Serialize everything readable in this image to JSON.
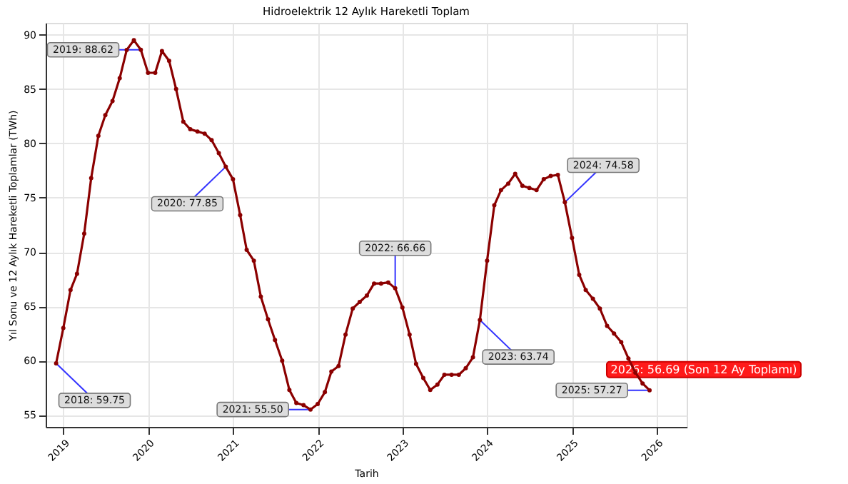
{
  "chart_data": {
    "type": "line",
    "title": "Hidroelektrik 12 Aylık Hareketli Toplam",
    "xlabel": "Tarih",
    "ylabel": "Yıl Sonu ve 12 Aylık Hareketli Toplamlar (TWh)",
    "x": [
      "2018-12",
      "2019-01",
      "2019-02",
      "2019-03",
      "2019-04",
      "2019-05",
      "2019-06",
      "2019-07",
      "2019-08",
      "2019-09",
      "2019-10",
      "2019-11",
      "2019-12",
      "2020-01",
      "2020-02",
      "2020-03",
      "2020-04",
      "2020-05",
      "2020-06",
      "2020-07",
      "2020-08",
      "2020-09",
      "2020-10",
      "2020-11",
      "2020-12",
      "2021-01",
      "2021-02",
      "2021-03",
      "2021-04",
      "2021-05",
      "2021-06",
      "2021-07",
      "2021-08",
      "2021-09",
      "2021-10",
      "2021-11",
      "2021-12",
      "2022-01",
      "2022-02",
      "2022-03",
      "2022-04",
      "2022-05",
      "2022-06",
      "2022-07",
      "2022-08",
      "2022-09",
      "2022-10",
      "2022-11",
      "2022-12",
      "2023-01",
      "2023-02",
      "2023-03",
      "2023-04",
      "2023-05",
      "2023-06",
      "2023-07",
      "2023-08",
      "2023-09",
      "2023-10",
      "2023-11",
      "2023-12",
      "2024-01",
      "2024-02",
      "2024-03",
      "2024-04",
      "2024-05",
      "2024-06",
      "2024-07",
      "2024-08",
      "2024-09",
      "2024-10",
      "2024-11",
      "2024-12",
      "2025-01",
      "2025-02",
      "2025-03",
      "2025-04",
      "2025-05",
      "2025-06",
      "2025-07",
      "2025-08",
      "2025-09",
      "2025-10",
      "2025-11",
      "2025-12"
    ],
    "series": [
      {
        "color": "#8b0000",
        "values": [
          59.75,
          63.0,
          66.5,
          68.0,
          71.7,
          76.8,
          80.7,
          82.6,
          83.9,
          86.0,
          88.6,
          89.5,
          88.62,
          86.5,
          86.5,
          88.5,
          87.6,
          85.0,
          82.0,
          81.3,
          81.1,
          80.9,
          80.3,
          79.1,
          77.85,
          76.7,
          73.4,
          70.2,
          69.2,
          65.9,
          63.8,
          61.9,
          60.0,
          57.3,
          56.1,
          55.9,
          55.5,
          56.0,
          57.1,
          59.0,
          59.5,
          62.4,
          64.8,
          65.4,
          66.0,
          67.1,
          67.1,
          67.2,
          66.66,
          64.9,
          62.4,
          59.7,
          58.4,
          57.3,
          57.8,
          58.7,
          58.7,
          58.7,
          59.3,
          60.3,
          63.74,
          69.2,
          74.3,
          75.7,
          76.3,
          77.2,
          76.1,
          75.9,
          75.7,
          76.7,
          77.0,
          77.1,
          74.58,
          71.3,
          67.9,
          66.5,
          65.7,
          64.8,
          63.2,
          62.5,
          61.7,
          60.2,
          58.9,
          57.9,
          57.27
        ]
      }
    ],
    "xlim": [
      "2018-10-17",
      "2026-05-10"
    ],
    "xticks": [
      "2019",
      "2020",
      "2021",
      "2022",
      "2023",
      "2024",
      "2025",
      "2026"
    ],
    "ylim": [
      53.9,
      91.1
    ],
    "yticks": [
      55,
      60,
      65,
      70,
      75,
      80,
      85,
      90
    ],
    "grid": true,
    "marker": "circle",
    "line_style": "solid",
    "annotations": [
      {
        "text": "2018: 59.75",
        "x": "2018-12",
        "y": 59.75
      },
      {
        "text": "2019: 88.62",
        "x": "2019-12",
        "y": 88.62
      },
      {
        "text": "2020: 77.85",
        "x": "2020-12",
        "y": 77.85
      },
      {
        "text": "2021: 55.50",
        "x": "2021-12",
        "y": 55.5
      },
      {
        "text": "2022: 66.66",
        "x": "2022-12",
        "y": 66.66
      },
      {
        "text": "2023: 63.74",
        "x": "2023-12",
        "y": 63.74
      },
      {
        "text": "2024: 74.58",
        "x": "2024-12",
        "y": 74.58
      },
      {
        "text": "2025: 57.27",
        "x": "2025-12",
        "y": 57.27
      },
      "2026: 56.69 (Son 12 Ay Toplamı)"
    ]
  }
}
